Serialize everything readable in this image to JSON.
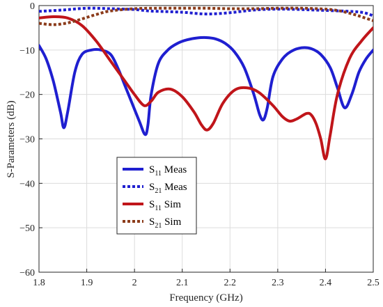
{
  "chart_data": {
    "type": "line",
    "xlabel": "Frequency (GHz)",
    "ylabel": "S-Parameters (dB)",
    "xlim": [
      1.8,
      2.5
    ],
    "ylim": [
      -60,
      0
    ],
    "xticks": [
      1.8,
      1.9,
      2.0,
      2.1,
      2.2,
      2.3,
      2.4,
      2.5
    ],
    "xtick_labels": [
      "1.8",
      "1.9",
      "2",
      "2.1",
      "2.2",
      "2.3",
      "2.4",
      "2.5"
    ],
    "yticks": [
      0,
      -10,
      -20,
      -30,
      -40,
      -50,
      -60
    ],
    "ytick_labels": [
      "0",
      "−10",
      "−20",
      "−30",
      "−40",
      "−50",
      "−60"
    ],
    "grid": true,
    "legend_position": "bottom-center",
    "series": [
      {
        "name": "S11 Meas",
        "legend": {
          "main": "S",
          "sub": "11",
          "suffix": " Meas"
        },
        "color": "#1f1fd0",
        "style": "solid",
        "x": [
          1.8,
          1.815,
          1.83,
          1.845,
          1.852,
          1.86,
          1.875,
          1.89,
          1.91,
          1.93,
          1.95,
          1.965,
          1.98,
          1.995,
          2.01,
          2.022,
          2.028,
          2.035,
          2.05,
          2.07,
          2.09,
          2.11,
          2.13,
          2.15,
          2.17,
          2.19,
          2.21,
          2.23,
          2.25,
          2.262,
          2.27,
          2.278,
          2.29,
          2.31,
          2.33,
          2.35,
          2.37,
          2.39,
          2.41,
          2.425,
          2.44,
          2.455,
          2.47,
          2.485,
          2.5
        ],
        "values": [
          -9,
          -12,
          -17,
          -24,
          -27.5,
          -24,
          -15,
          -11,
          -10,
          -10,
          -11,
          -14,
          -18,
          -22,
          -26,
          -29,
          -27,
          -20,
          -13,
          -10,
          -8.5,
          -7.7,
          -7.3,
          -7.2,
          -7.5,
          -8.5,
          -10.5,
          -14,
          -20,
          -24.5,
          -25.7,
          -23,
          -16,
          -12,
          -10.2,
          -9.5,
          -9.7,
          -11,
          -14,
          -18.5,
          -23,
          -20,
          -15,
          -12,
          -10
        ]
      },
      {
        "name": "S21 Meas",
        "legend": {
          "main": "S",
          "sub": "21",
          "suffix": " Meas"
        },
        "color": "#1f1fd0",
        "style": "dotted",
        "x": [
          1.8,
          1.85,
          1.9,
          1.95,
          2.0,
          2.03,
          2.05,
          2.1,
          2.15,
          2.2,
          2.25,
          2.3,
          2.35,
          2.4,
          2.45,
          2.48,
          2.5
        ],
        "values": [
          -1.3,
          -1.0,
          -0.6,
          -0.7,
          -0.9,
          -1.2,
          -1.3,
          -1.5,
          -1.9,
          -1.6,
          -1.0,
          -0.8,
          -0.9,
          -1.1,
          -1.3,
          -1.6,
          -2.3
        ]
      },
      {
        "name": "S11 Sim",
        "legend": {
          "main": "S",
          "sub": "11",
          "suffix": " Sim"
        },
        "color": "#c0151a",
        "style": "solid",
        "x": [
          1.8,
          1.83,
          1.86,
          1.89,
          1.92,
          1.95,
          1.98,
          2.0,
          2.02,
          2.035,
          2.05,
          2.075,
          2.1,
          2.125,
          2.14,
          2.152,
          2.165,
          2.185,
          2.21,
          2.235,
          2.26,
          2.29,
          2.31,
          2.325,
          2.34,
          2.36,
          2.37,
          2.38,
          2.39,
          2.4,
          2.41,
          2.425,
          2.45,
          2.475,
          2.5
        ],
        "values": [
          -2.8,
          -2.5,
          -2.8,
          -4.5,
          -8,
          -12.5,
          -17,
          -20,
          -22.5,
          -21.5,
          -19.5,
          -18.8,
          -20.5,
          -24,
          -26.8,
          -28,
          -26.5,
          -22,
          -19,
          -18.5,
          -19.5,
          -22.5,
          -25,
          -26,
          -25.5,
          -24.3,
          -24.6,
          -26.5,
          -30,
          -34.5,
          -29,
          -20,
          -12,
          -8,
          -5
        ]
      },
      {
        "name": "S21 Sim",
        "legend": {
          "main": "S",
          "sub": "21",
          "suffix": " Sim"
        },
        "color": "#8b3b1a",
        "style": "dotted",
        "x": [
          1.8,
          1.83,
          1.86,
          1.89,
          1.92,
          1.95,
          2.0,
          2.05,
          2.1,
          2.15,
          2.2,
          2.25,
          2.3,
          2.35,
          2.4,
          2.43,
          2.46,
          2.48,
          2.5
        ],
        "values": [
          -4.0,
          -4.3,
          -3.9,
          -3.0,
          -2.0,
          -1.2,
          -0.7,
          -0.6,
          -0.6,
          -0.6,
          -0.7,
          -0.7,
          -0.6,
          -0.6,
          -0.8,
          -1.2,
          -2.0,
          -2.7,
          -3.4
        ]
      }
    ]
  }
}
